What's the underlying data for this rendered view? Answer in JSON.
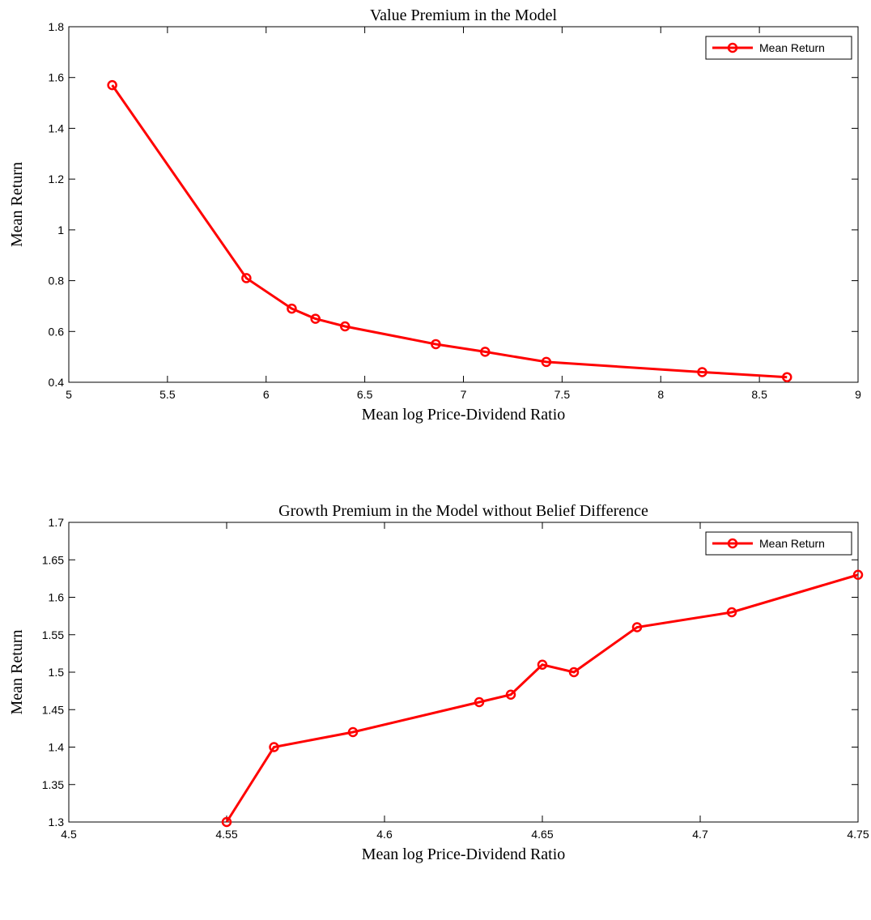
{
  "chart_data": [
    {
      "type": "line",
      "title": "Value Premium in the Model",
      "x_label": "Mean log Price-Dividend Ratio",
      "y_label": "Mean Return",
      "x": [
        5.22,
        5.9,
        6.13,
        6.25,
        6.4,
        6.86,
        7.11,
        7.42,
        8.21,
        8.64
      ],
      "series": [
        {
          "name": "Mean Return",
          "color": "#ff0000",
          "values": [
            1.57,
            0.81,
            0.69,
            0.65,
            0.62,
            0.55,
            0.52,
            0.48,
            0.44,
            0.42
          ]
        }
      ],
      "xlim": [
        5,
        9
      ],
      "xticks": [
        5,
        5.5,
        6,
        6.5,
        7,
        7.5,
        8,
        8.5,
        9
      ],
      "ylim": [
        0.4,
        1.8
      ],
      "yticks": [
        0.4,
        0.6,
        0.8,
        1,
        1.2,
        1.4,
        1.6,
        1.8
      ],
      "legend": "upper right",
      "marker": "circle"
    },
    {
      "type": "line",
      "title": "Growth Premium in the Model without Belief Difference",
      "x_label": "Mean log Price-Dividend Ratio",
      "y_label": "Mean Return",
      "x": [
        4.55,
        4.565,
        4.59,
        4.63,
        4.64,
        4.65,
        4.66,
        4.68,
        4.71,
        4.75
      ],
      "series": [
        {
          "name": "Mean Return",
          "color": "#ff0000",
          "values": [
            1.3,
            1.4,
            1.42,
            1.46,
            1.47,
            1.51,
            1.5,
            1.56,
            1.58,
            1.63
          ]
        }
      ],
      "xlim": [
        4.5,
        4.75
      ],
      "xticks": [
        4.5,
        4.55,
        4.6,
        4.65,
        4.7,
        4.75
      ],
      "ylim": [
        1.3,
        1.7
      ],
      "yticks": [
        1.3,
        1.35,
        1.4,
        1.45,
        1.5,
        1.55,
        1.6,
        1.65,
        1.7
      ],
      "legend": "upper right",
      "marker": "circle"
    }
  ]
}
